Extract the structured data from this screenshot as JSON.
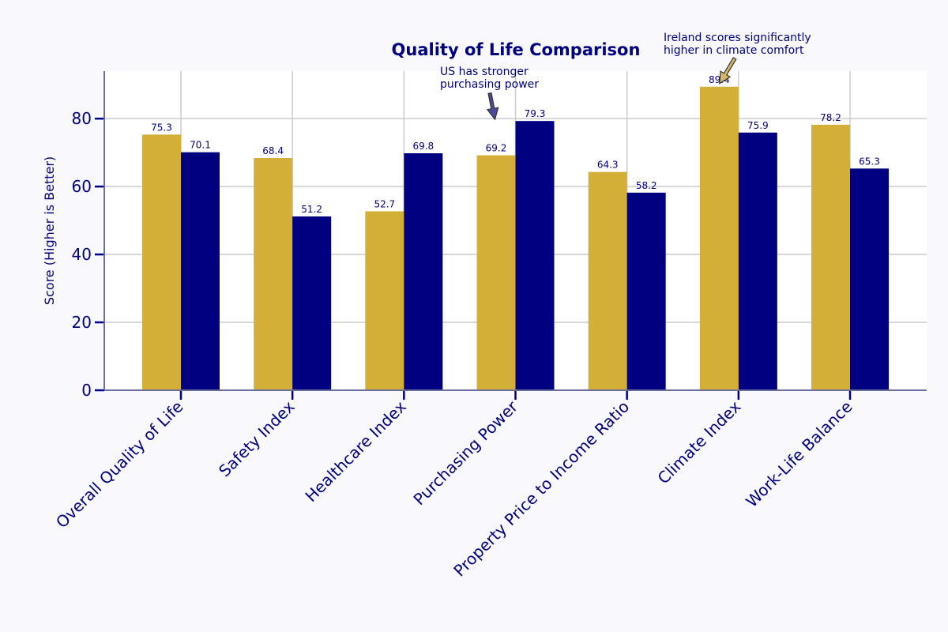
{
  "chart_data": {
    "type": "bar",
    "title": "Quality of Life Comparison",
    "xlabel": "",
    "ylabel": "Score (Higher is Better)",
    "ylim": [
      0,
      94
    ],
    "yticks": [
      0,
      20,
      40,
      60,
      80
    ],
    "grid": true,
    "legend": "none",
    "categories": [
      "Overall Quality of Life",
      "Safety Index",
      "Healthcare Index",
      "Purchasing Power",
      "Property Price to Income Ratio",
      "Climate Index",
      "Work-Life Balance"
    ],
    "series": [
      {
        "values": [
          75.3,
          68.4,
          52.7,
          69.2,
          64.3,
          89.4,
          78.2
        ],
        "color": "#d4af37"
      },
      {
        "values": [
          70.1,
          51.2,
          69.8,
          79.3,
          58.2,
          75.9,
          65.3
        ],
        "color": "#000080"
      }
    ],
    "annotations": [
      {
        "lines": [
          "US has stronger",
          "purchasing power"
        ],
        "category": "Purchasing Power",
        "series": 1,
        "arrow_color": "#4b4b9b"
      },
      {
        "lines": [
          "Ireland scores significantly",
          "higher in climate comfort"
        ],
        "category": "Climate Index",
        "series": 0,
        "arrow_color": "#d4b86a"
      }
    ],
    "colors": {
      "text": "#000080",
      "grid": "#cccccc",
      "axis": "#6b6fa0",
      "background": "#f8f8fd",
      "plot_background": "#ffffff"
    }
  }
}
